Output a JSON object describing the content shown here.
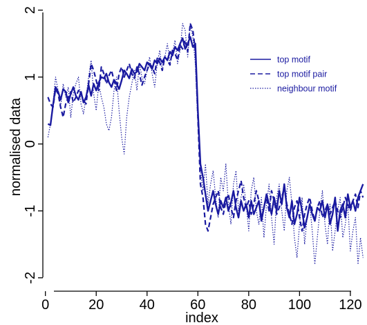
{
  "chart_data": {
    "type": "line",
    "title": "",
    "xlabel": "index",
    "ylabel": "normalised data",
    "xlim": [
      -1,
      126
    ],
    "ylim": [
      -2.2,
      2.1
    ],
    "xticks": [
      0,
      20,
      40,
      60,
      80,
      100,
      120
    ],
    "yticks": [
      -2,
      -1,
      0,
      1,
      2
    ],
    "xtick_labels": [
      "0",
      "20",
      "40",
      "60",
      "80",
      "100",
      "120"
    ],
    "ytick_labels": [
      "-2",
      "-1",
      "0",
      "1",
      "2"
    ],
    "grid": false,
    "legend_position": "right",
    "line_color": "#1a1aa0",
    "series": [
      {
        "name": "top motif",
        "style": "solid",
        "values": [
          0.3,
          0.28,
          0.58,
          0.85,
          0.78,
          0.66,
          0.82,
          0.78,
          0.62,
          0.75,
          0.85,
          0.72,
          0.66,
          0.78,
          0.62,
          0.7,
          0.88,
          0.72,
          0.9,
          0.8,
          0.92,
          1.0,
          0.98,
          1.05,
          0.92,
          0.85,
          0.96,
          0.9,
          0.82,
          0.95,
          1.1,
          1.05,
          0.98,
          1.12,
          1.05,
          1.08,
          1.2,
          1.15,
          1.1,
          1.22,
          1.18,
          1.12,
          1.25,
          1.2,
          1.28,
          1.22,
          1.3,
          1.25,
          1.38,
          1.32,
          1.45,
          1.4,
          1.5,
          1.58,
          1.42,
          1.5,
          1.6,
          1.45,
          1.5,
          0.5,
          -0.3,
          -0.5,
          -0.75,
          -1.0,
          -0.85,
          -0.7,
          -0.9,
          -1.05,
          -0.85,
          -0.95,
          -0.8,
          -1.0,
          -0.88,
          -0.7,
          -0.95,
          -1.1,
          -0.85,
          -1.0,
          -0.9,
          -1.1,
          -0.85,
          -1.05,
          -0.95,
          -0.85,
          -1.15,
          -0.95,
          -0.75,
          -0.9,
          -1.05,
          -0.8,
          -1.0,
          -0.7,
          -0.9,
          -0.6,
          -0.95,
          -1.1,
          -0.85,
          -1.2,
          -1.05,
          -0.8,
          -1.0,
          -1.25,
          -1.1,
          -0.9,
          -1.05,
          -1.15,
          -0.95,
          -1.0,
          -0.85,
          -1.1,
          -0.9,
          -1.2,
          -1.05,
          -0.8,
          -1.3,
          -1.0,
          -0.9,
          -1.1,
          -0.75,
          -0.95,
          -0.85,
          -1.0,
          -0.8,
          -0.7,
          -0.6
        ]
      },
      {
        "name": "top motif pair",
        "style": "dashed",
        "values": [
          0.7,
          0.6,
          0.55,
          0.82,
          0.75,
          0.55,
          0.4,
          0.6,
          0.7,
          0.78,
          0.62,
          0.7,
          0.8,
          0.75,
          0.65,
          0.6,
          0.9,
          1.2,
          1.1,
          0.95,
          0.8,
          1.15,
          1.05,
          0.9,
          1.02,
          1.1,
          0.95,
          0.8,
          1.05,
          1.15,
          1.0,
          1.1,
          1.2,
          1.05,
          0.98,
          1.15,
          1.05,
          0.88,
          1.0,
          1.1,
          1.2,
          1.15,
          1.05,
          1.28,
          1.22,
          1.1,
          1.3,
          1.25,
          1.18,
          1.4,
          1.35,
          1.25,
          1.48,
          1.42,
          1.55,
          1.38,
          1.8,
          1.7,
          1.4,
          0.4,
          -0.6,
          -0.8,
          -1.2,
          -1.3,
          -1.1,
          -0.9,
          -0.8,
          -0.7,
          -0.95,
          -1.05,
          -0.85,
          -0.75,
          -0.95,
          -1.1,
          -0.85,
          -0.7,
          -0.55,
          -0.8,
          -0.95,
          -0.85,
          -1.05,
          -0.9,
          -0.7,
          -0.85,
          -1.1,
          -0.95,
          -0.8,
          -1.0,
          -0.7,
          -0.85,
          -1.05,
          -0.95,
          -0.8,
          -0.65,
          -0.9,
          -1.05,
          -1.2,
          -0.95,
          -0.85,
          -1.1,
          -1.3,
          -1.05,
          -0.9,
          -0.8,
          -1.0,
          -1.15,
          -0.95,
          -0.85,
          -1.1,
          -1.0,
          -0.9,
          -1.05,
          -0.95,
          -0.85,
          -1.0,
          -1.1,
          -0.95,
          -0.8,
          -0.9,
          -1.0,
          -0.85,
          -0.75,
          -0.95,
          -0.7,
          -0.8
        ]
      },
      {
        "name": "neighbour motif",
        "style": "dotted",
        "values": [
          0.1,
          0.3,
          0.6,
          1.0,
          0.8,
          0.55,
          0.9,
          0.7,
          0.85,
          0.4,
          0.75,
          0.9,
          1.0,
          0.6,
          0.45,
          0.7,
          1.0,
          1.25,
          0.75,
          0.5,
          0.9,
          0.7,
          0.55,
          0.3,
          0.2,
          0.4,
          0.8,
          1.0,
          0.5,
          0.1,
          -0.15,
          0.4,
          0.7,
          0.9,
          1.1,
          0.8,
          1.2,
          1.0,
          0.9,
          1.1,
          1.3,
          1.05,
          0.85,
          1.2,
          1.4,
          1.1,
          1.3,
          1.5,
          1.2,
          1.35,
          1.55,
          1.2,
          1.4,
          1.8,
          1.7,
          1.3,
          1.8,
          1.6,
          1.2,
          0.3,
          -0.4,
          -0.7,
          -0.3,
          -0.9,
          -0.6,
          -0.4,
          -0.8,
          -1.1,
          -0.5,
          -0.7,
          -0.3,
          -0.9,
          -1.2,
          -0.6,
          -0.4,
          -1.0,
          -0.8,
          -0.6,
          -0.9,
          -1.3,
          -0.7,
          -0.5,
          -1.0,
          -1.2,
          -0.8,
          -1.4,
          -0.9,
          -0.6,
          -1.1,
          -1.5,
          -0.8,
          -0.6,
          -1.0,
          -1.3,
          -0.7,
          -0.5,
          -0.9,
          -1.4,
          -1.7,
          -1.2,
          -0.8,
          -1.5,
          -1.1,
          -0.9,
          -1.3,
          -1.8,
          -1.4,
          -1.0,
          -0.7,
          -1.2,
          -1.5,
          -0.9,
          -1.6,
          -1.3,
          -1.0,
          -0.8,
          -1.4,
          -1.2,
          -0.9,
          -1.6,
          -1.3,
          -1.1,
          -1.8,
          -1.4,
          -1.7
        ]
      }
    ]
  }
}
